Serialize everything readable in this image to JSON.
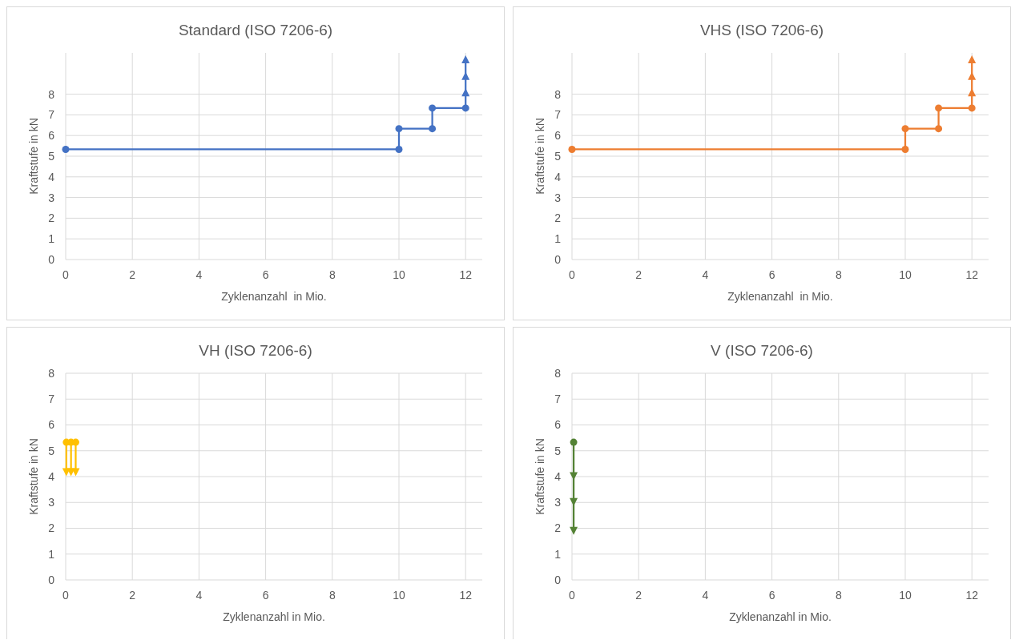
{
  "chart_data": [
    {
      "type": "line",
      "title": "Standard (ISO 7206-6)",
      "xlabel": "Zyklenanzahl  in Mio.",
      "ylabel": "Kraftstufe in kN",
      "xlim": [
        0,
        12.5
      ],
      "ylim": [
        0,
        10
      ],
      "xticks": [
        0,
        2,
        4,
        6,
        8,
        10,
        12
      ],
      "yticks": [
        0,
        1,
        2,
        3,
        4,
        5,
        6,
        7,
        8
      ],
      "grid": true,
      "series": [
        {
          "color": "#4472c4",
          "marker": "circle",
          "x": [
            0,
            10,
            10,
            11,
            11,
            12
          ],
          "values": [
            5.33,
            5.33,
            6.33,
            6.33,
            7.33,
            7.33
          ]
        },
        {
          "color": "#4472c4",
          "marker": "none",
          "x": [
            12,
            12
          ],
          "values": [
            7.33,
            9.65
          ]
        },
        {
          "type": "scatter",
          "color": "#4472c4",
          "marker": "triangle",
          "x": [
            12,
            12,
            12
          ],
          "values": [
            8.05,
            8.85,
            9.65
          ]
        }
      ]
    },
    {
      "type": "line",
      "title": "VHS (ISO 7206-6)",
      "xlabel": "Zyklenanzahl  in Mio.",
      "ylabel": "Kraftstufe in kN",
      "xlim": [
        0,
        12.5
      ],
      "ylim": [
        0,
        10
      ],
      "xticks": [
        0,
        2,
        4,
        6,
        8,
        10,
        12
      ],
      "yticks": [
        0,
        1,
        2,
        3,
        4,
        5,
        6,
        7,
        8
      ],
      "grid": true,
      "series": [
        {
          "color": "#ed7d31",
          "marker": "circle",
          "x": [
            0,
            10,
            10,
            11,
            11,
            12
          ],
          "values": [
            5.33,
            5.33,
            6.33,
            6.33,
            7.33,
            7.33
          ]
        },
        {
          "color": "#ed7d31",
          "marker": "none",
          "x": [
            12,
            12
          ],
          "values": [
            7.33,
            9.65
          ]
        },
        {
          "type": "scatter",
          "color": "#ed7d31",
          "marker": "triangle",
          "x": [
            12,
            12,
            12
          ],
          "values": [
            8.05,
            8.85,
            9.65
          ]
        }
      ]
    },
    {
      "type": "line",
      "title": "VH (ISO 7206-6)",
      "xlabel": "Zyklenanzahl in Mio.",
      "ylabel": "Kraftstufe in kN",
      "xlim": [
        0,
        12.5
      ],
      "ylim": [
        0,
        8
      ],
      "xticks": [
        0,
        2,
        4,
        6,
        8,
        10,
        12
      ],
      "yticks": [
        0,
        1,
        2,
        3,
        4,
        5,
        6,
        7,
        8
      ],
      "grid": true,
      "series": [
        {
          "color": "#ffc000",
          "marker": "none",
          "x": [
            0.02,
            0.02
          ],
          "values": [
            5.33,
            4.2
          ]
        },
        {
          "color": "#ffc000",
          "marker": "none",
          "x": [
            0.16,
            0.16
          ],
          "values": [
            5.33,
            4.2
          ]
        },
        {
          "color": "#ffc000",
          "marker": "none",
          "x": [
            0.3,
            0.3
          ],
          "values": [
            5.33,
            4.2
          ]
        },
        {
          "type": "scatter",
          "color": "#ffc000",
          "marker": "circle",
          "x": [
            0.02,
            0.16,
            0.3
          ],
          "values": [
            5.33,
            5.33,
            5.33
          ]
        },
        {
          "type": "scatter",
          "color": "#ffc000",
          "marker": "triangle",
          "x": [
            0.02,
            0.16,
            0.3
          ],
          "values": [
            4.2,
            4.2,
            4.2
          ]
        }
      ]
    },
    {
      "type": "line",
      "title": "V (ISO 7206-6)",
      "xlabel": "Zyklenanzahl in Mio.",
      "ylabel": "Kraftstufe in kN",
      "xlim": [
        0,
        12.5
      ],
      "ylim": [
        0,
        8
      ],
      "xticks": [
        0,
        2,
        4,
        6,
        8,
        10,
        12
      ],
      "yticks": [
        0,
        1,
        2,
        3,
        4,
        5,
        6,
        7,
        8
      ],
      "grid": true,
      "series": [
        {
          "color": "#548235",
          "marker": "none",
          "x": [
            0.05,
            0.05
          ],
          "values": [
            5.33,
            1.93
          ]
        },
        {
          "type": "scatter",
          "color": "#548235",
          "marker": "circle",
          "x": [
            0.05
          ],
          "values": [
            5.33
          ]
        },
        {
          "type": "scatter",
          "color": "#548235",
          "marker": "triangle",
          "x": [
            0.05,
            0.05,
            0.05
          ],
          "values": [
            4.05,
            3.05,
            1.93
          ]
        }
      ]
    }
  ]
}
